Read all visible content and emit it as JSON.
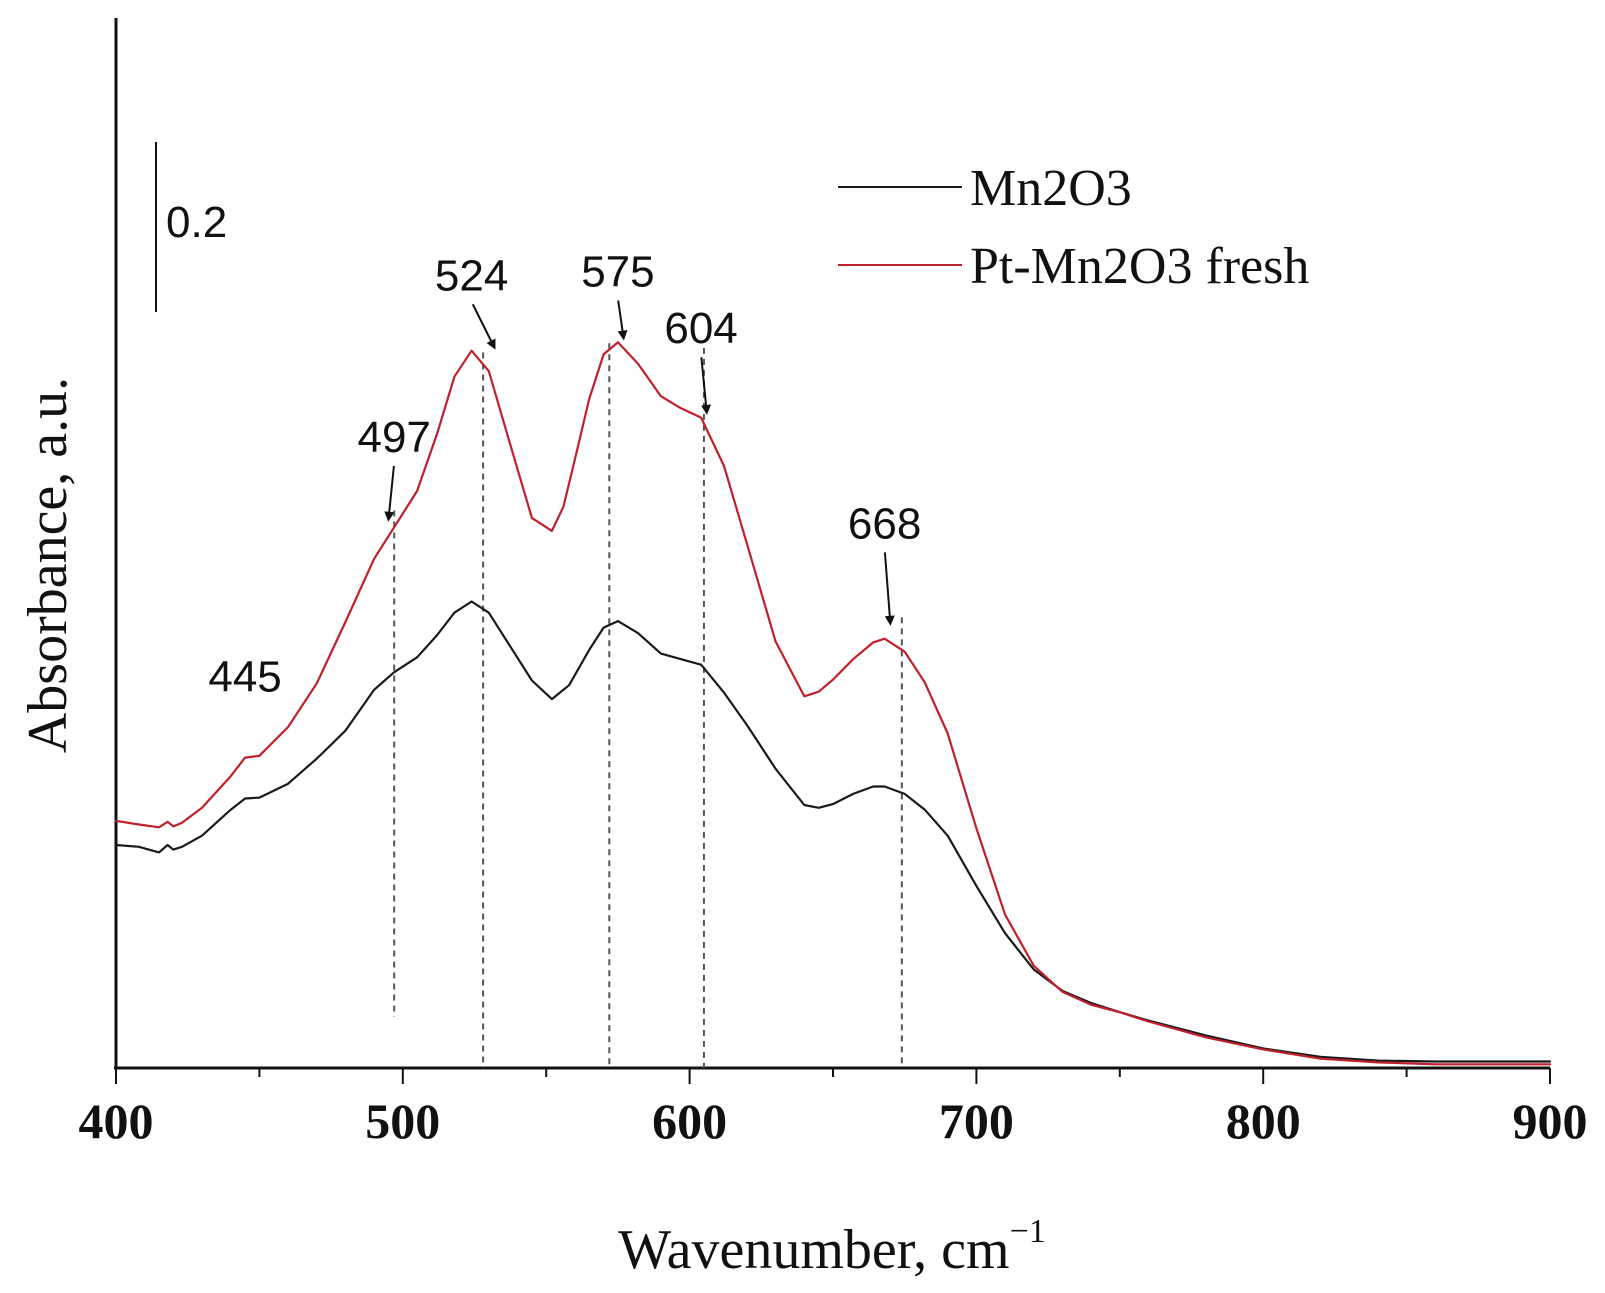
{
  "chart_data": {
    "type": "line",
    "title": "",
    "xlabel": "Wavenumber, cm",
    "xlabel_sup": "−1",
    "ylabel": "Absorbance, a.u.",
    "xlim": [
      400,
      900
    ],
    "ylim": [
      0,
      1.13
    ],
    "xticks": [
      400,
      500,
      600,
      700,
      800,
      900
    ],
    "xtick_labels": [
      "400",
      "500",
      "600",
      "700",
      "800",
      "900"
    ],
    "grid": false,
    "legend_position": "top-right",
    "scale_bar": {
      "value": 0.2,
      "label": "0.2"
    },
    "series": [
      {
        "name": "Mn2O3",
        "color": "#1a1a1a",
        "x": [
          400,
          408,
          415,
          418,
          420,
          423,
          430,
          440,
          445,
          450,
          460,
          470,
          480,
          490,
          497,
          505,
          512,
          518,
          524,
          530,
          537,
          545,
          552,
          558,
          565,
          570,
          575,
          582,
          590,
          597,
          604,
          612,
          620,
          630,
          640,
          645,
          650,
          657,
          664,
          668,
          675,
          682,
          690,
          700,
          710,
          720,
          730,
          740,
          750,
          760,
          780,
          800,
          820,
          840,
          860,
          880,
          900
        ],
        "y": [
          0.24,
          0.238,
          0.232,
          0.24,
          0.235,
          0.238,
          0.25,
          0.278,
          0.29,
          0.291,
          0.306,
          0.333,
          0.363,
          0.407,
          0.426,
          0.442,
          0.466,
          0.49,
          0.502,
          0.49,
          0.456,
          0.417,
          0.397,
          0.412,
          0.45,
          0.474,
          0.481,
          0.468,
          0.446,
          0.44,
          0.434,
          0.404,
          0.369,
          0.322,
          0.283,
          0.28,
          0.284,
          0.295,
          0.303,
          0.303,
          0.295,
          0.278,
          0.25,
          0.196,
          0.145,
          0.106,
          0.083,
          0.07,
          0.06,
          0.051,
          0.035,
          0.021,
          0.012,
          0.008,
          0.007,
          0.007,
          0.007
        ]
      },
      {
        "name": "Pt-Mn2O3 fresh",
        "color": "#c0202c",
        "x": [
          400,
          408,
          415,
          418,
          420,
          423,
          430,
          440,
          445,
          450,
          460,
          470,
          480,
          490,
          497,
          505,
          512,
          518,
          524,
          530,
          537,
          545,
          552,
          556,
          560,
          565,
          570,
          575,
          582,
          590,
          597,
          604,
          612,
          620,
          630,
          640,
          645,
          650,
          657,
          664,
          668,
          675,
          682,
          690,
          700,
          710,
          720,
          730,
          740,
          750,
          760,
          780,
          800,
          820,
          840,
          860,
          880,
          900
        ],
        "y": [
          0.266,
          0.262,
          0.259,
          0.265,
          0.26,
          0.264,
          0.28,
          0.314,
          0.334,
          0.336,
          0.367,
          0.414,
          0.48,
          0.548,
          0.582,
          0.621,
          0.683,
          0.744,
          0.772,
          0.75,
          0.676,
          0.592,
          0.578,
          0.604,
          0.655,
          0.72,
          0.768,
          0.781,
          0.758,
          0.723,
          0.71,
          0.7,
          0.648,
          0.564,
          0.459,
          0.4,
          0.405,
          0.418,
          0.44,
          0.458,
          0.462,
          0.448,
          0.415,
          0.36,
          0.258,
          0.165,
          0.11,
          0.082,
          0.068,
          0.06,
          0.05,
          0.033,
          0.02,
          0.01,
          0.006,
          0.004,
          0.004,
          0.004
        ]
      }
    ],
    "reference_lines": [
      {
        "x": 497,
        "y_top": 0.6,
        "y_bottom": 0.055
      },
      {
        "x": 528,
        "y_top": 0.77,
        "y_bottom": 0.0
      },
      {
        "x": 572,
        "y_top": 0.78,
        "y_bottom": 0.0
      },
      {
        "x": 605,
        "y_top": 0.775,
        "y_bottom": 0.0
      },
      {
        "x": 674,
        "y_top": 0.485,
        "y_bottom": 0.0
      }
    ],
    "annotations": [
      {
        "label": "445",
        "x": 445,
        "y": 0.405,
        "arrow": false
      },
      {
        "label": "497",
        "x": 497,
        "y": 0.663,
        "arrow": true,
        "arrow_x": 495,
        "arrow_y": 0.59
      },
      {
        "label": "524",
        "x": 524,
        "y": 0.837,
        "arrow": true,
        "arrow_x": 532,
        "arrow_y": 0.775
      },
      {
        "label": "575",
        "x": 575,
        "y": 0.841,
        "arrow": true,
        "arrow_x": 577,
        "arrow_y": 0.785
      },
      {
        "label": "604",
        "x": 604,
        "y": 0.78,
        "arrow": true,
        "arrow_x": 606,
        "arrow_y": 0.705
      },
      {
        "label": "668",
        "x": 668,
        "y": 0.57,
        "arrow": true,
        "arrow_x": 670,
        "arrow_y": 0.478
      }
    ]
  }
}
